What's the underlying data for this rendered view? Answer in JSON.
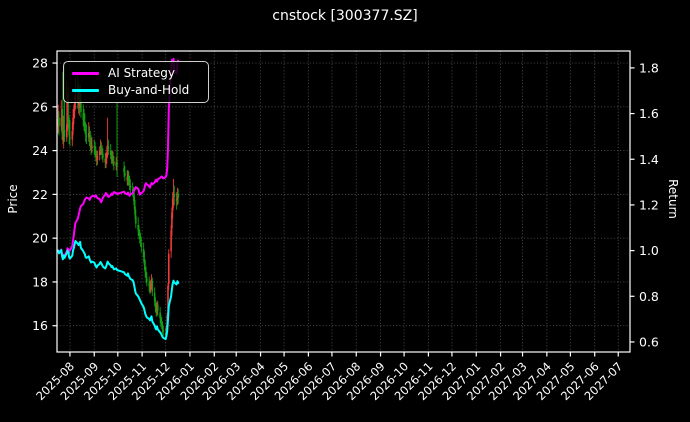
{
  "title": "cnstock [300377.SZ]",
  "chart_data": {
    "type": "candlestick+line",
    "title": "cnstock [300377.SZ]",
    "background": "#000000",
    "text_color": "#ffffff",
    "grid": {
      "on": true,
      "color": "#545454",
      "style": "dotted"
    },
    "candle_colors": {
      "up": "#f23a3a",
      "down": "#12a112",
      "convention": "red-up green-down"
    },
    "axes": {
      "left": {
        "label": "Price",
        "ticks": [
          16,
          18,
          20,
          22,
          24,
          26,
          28
        ],
        "range": [
          14.8,
          28.55
        ]
      },
      "right": {
        "label": "Return",
        "ticks": [
          0.6,
          0.8,
          1.0,
          1.2,
          1.4,
          1.6,
          1.8
        ],
        "range": [
          0.556,
          1.874
        ]
      },
      "x": {
        "range_days": [
          -1.5,
          729
        ],
        "ticks": [
          {
            "label": "2025-08",
            "t": 15
          },
          {
            "label": "2025-09",
            "t": 46
          },
          {
            "label": "2025-10",
            "t": 76
          },
          {
            "label": "2025-11",
            "t": 107
          },
          {
            "label": "2025-12",
            "t": 137
          },
          {
            "label": "2026-01",
            "t": 168
          },
          {
            "label": "2026-02",
            "t": 199
          },
          {
            "label": "2026-03",
            "t": 227
          },
          {
            "label": "2026-04",
            "t": 258
          },
          {
            "label": "2026-05",
            "t": 288
          },
          {
            "label": "2026-06",
            "t": 319
          },
          {
            "label": "2026-07",
            "t": 349
          },
          {
            "label": "2026-08",
            "t": 380
          },
          {
            "label": "2026-09",
            "t": 411
          },
          {
            "label": "2026-10",
            "t": 441
          },
          {
            "label": "2026-11",
            "t": 472
          },
          {
            "label": "2026-12",
            "t": 502
          },
          {
            "label": "2027-01",
            "t": 533
          },
          {
            "label": "2027-02",
            "t": 564
          },
          {
            "label": "2027-03",
            "t": 592
          },
          {
            "label": "2027-04",
            "t": 623
          },
          {
            "label": "2027-05",
            "t": 653
          },
          {
            "label": "2027-06",
            "t": 684
          },
          {
            "label": "2027-07",
            "t": 714
          }
        ]
      }
    },
    "legend": {
      "position": "upper-left",
      "items": [
        {
          "label": "AI Strategy",
          "color": "#ff00ff"
        },
        {
          "label": "Buy-and-Hold",
          "color": "#00ffff"
        }
      ]
    },
    "days_t": [
      0,
      1,
      4,
      5,
      6,
      7,
      8,
      11,
      12,
      13,
      14,
      15,
      18,
      19,
      20,
      21,
      22,
      25,
      26,
      27,
      28,
      29,
      32,
      33,
      34,
      35,
      36,
      39,
      40,
      41,
      42,
      43,
      46,
      47,
      48,
      49,
      50,
      53,
      54,
      55,
      56,
      57,
      60,
      61,
      62,
      63,
      64,
      67,
      68,
      69,
      70,
      71,
      74,
      75,
      84,
      85,
      88,
      89,
      90,
      91,
      92,
      95,
      96,
      97,
      98,
      99,
      102,
      103,
      104,
      105,
      106,
      109,
      110,
      111,
      112,
      113,
      116,
      117,
      118,
      119,
      120,
      123,
      124,
      125,
      126,
      127,
      130,
      131,
      132,
      133,
      134,
      137,
      138,
      139,
      140,
      141,
      144,
      145,
      146,
      147,
      148,
      151,
      152,
      153
    ],
    "ohlc": [
      [
        25.1,
        26.1,
        24.8,
        25.45
      ],
      [
        25.5,
        25.8,
        24.7,
        25.14
      ],
      [
        25.1,
        26.3,
        24.9,
        25.5
      ],
      [
        25.55,
        25.9,
        24.5,
        24.81
      ],
      [
        24.85,
        27.6,
        24.3,
        24.48
      ],
      [
        24.4,
        25.6,
        24.1,
        24.89
      ],
      [
        24.95,
        28.05,
        24.4,
        24.64
      ],
      [
        24.6,
        27.2,
        24.4,
        25.2
      ],
      [
        25.15,
        26.6,
        24.9,
        25.45
      ],
      [
        25.5,
        26.9,
        25.0,
        25.25
      ],
      [
        25.2,
        25.6,
        24.3,
        24.69
      ],
      [
        24.6,
        25.4,
        24.2,
        24.56
      ],
      [
        24.5,
        25.3,
        24.2,
        24.89
      ],
      [
        24.95,
        25.9,
        24.7,
        25.5
      ],
      [
        25.45,
        26.1,
        25.2,
        25.76
      ],
      [
        25.8,
        26.5,
        25.5,
        26.16
      ],
      [
        26.2,
        27.3,
        25.9,
        26.52
      ],
      [
        26.6,
        27.55,
        25.9,
        26.21
      ],
      [
        26.3,
        27.1,
        25.7,
        26.06
      ],
      [
        26.0,
        26.7,
        25.6,
        26.26
      ],
      [
        26.3,
        27.0,
        25.95,
        26.42
      ],
      [
        26.35,
        26.6,
        25.5,
        25.76
      ],
      [
        25.7,
        26.1,
        25.1,
        25.4
      ],
      [
        25.45,
        25.9,
        24.9,
        25.2
      ],
      [
        25.25,
        25.7,
        24.8,
        25.07
      ],
      [
        25.0,
        25.3,
        24.4,
        24.74
      ],
      [
        24.7,
        25.2,
        24.3,
        24.64
      ],
      [
        24.6,
        25.3,
        24.4,
        24.81
      ],
      [
        24.85,
        25.1,
        24.2,
        24.48
      ],
      [
        24.45,
        24.9,
        24.0,
        24.3
      ],
      [
        24.25,
        24.7,
        23.8,
        24.13
      ],
      [
        24.1,
        24.6,
        23.9,
        24.23
      ],
      [
        24.2,
        24.5,
        23.8,
        24.13
      ],
      [
        24.1,
        24.4,
        23.7,
        23.92
      ],
      [
        23.9,
        24.2,
        23.5,
        23.72
      ],
      [
        23.7,
        24.0,
        23.3,
        23.57
      ],
      [
        23.55,
        24.0,
        23.35,
        23.77
      ],
      [
        23.8,
        24.2,
        23.55,
        23.97
      ],
      [
        24.0,
        24.5,
        23.8,
        24.18
      ],
      [
        24.2,
        24.4,
        23.8,
        24.05
      ],
      [
        24.0,
        24.25,
        23.6,
        23.87
      ],
      [
        23.85,
        24.1,
        23.45,
        23.67
      ],
      [
        23.65,
        23.9,
        23.2,
        23.46
      ],
      [
        23.4,
        23.9,
        23.2,
        23.62
      ],
      [
        23.65,
        24.2,
        23.4,
        23.92
      ],
      [
        23.95,
        25.5,
        23.7,
        24.23
      ],
      [
        24.2,
        24.5,
        23.8,
        24.05
      ],
      [
        24.0,
        24.3,
        23.6,
        23.8
      ],
      [
        23.75,
        24.0,
        23.4,
        23.62
      ],
      [
        23.6,
        24.0,
        23.4,
        23.72
      ],
      [
        23.7,
        23.95,
        23.3,
        23.54
      ],
      [
        23.5,
        23.75,
        23.1,
        23.36
      ],
      [
        23.3,
        23.7,
        23.1,
        23.46
      ],
      [
        23.5,
        26.2,
        22.8,
        23.29
      ],
      [
        23.2,
        23.5,
        22.8,
        23.03
      ],
      [
        23.0,
        23.3,
        22.6,
        22.85
      ],
      [
        22.8,
        23.1,
        22.4,
        22.65
      ],
      [
        22.6,
        23.1,
        22.4,
        22.91
      ],
      [
        22.85,
        23.05,
        22.4,
        22.6
      ],
      [
        22.55,
        22.85,
        22.2,
        22.45
      ],
      [
        22.4,
        22.7,
        22.05,
        22.29
      ],
      [
        22.25,
        22.55,
        21.9,
        22.14
      ],
      [
        22.1,
        22.35,
        21.7,
        21.94
      ],
      [
        21.9,
        22.1,
        21.3,
        21.51
      ],
      [
        21.45,
        21.75,
        20.85,
        21.07
      ],
      [
        21.0,
        21.3,
        20.45,
        20.67
      ],
      [
        20.6,
        20.95,
        20.1,
        20.36
      ],
      [
        20.3,
        20.6,
        19.95,
        20.16
      ],
      [
        20.1,
        20.4,
        19.75,
        19.98
      ],
      [
        19.95,
        20.25,
        19.6,
        19.8
      ],
      [
        19.75,
        20.05,
        19.35,
        19.6
      ],
      [
        19.5,
        19.8,
        18.9,
        19.14
      ],
      [
        19.05,
        19.4,
        18.55,
        18.78
      ],
      [
        18.7,
        19.0,
        18.2,
        18.45
      ],
      [
        18.4,
        18.7,
        17.95,
        18.2
      ],
      [
        18.15,
        18.45,
        17.8,
        18.02
      ],
      [
        17.95,
        18.25,
        17.55,
        17.82
      ],
      [
        17.75,
        18.05,
        17.45,
        17.69
      ],
      [
        17.65,
        18.1,
        17.5,
        17.94
      ],
      [
        17.9,
        18.35,
        17.7,
        18.12
      ],
      [
        18.05,
        18.2,
        17.35,
        17.56
      ],
      [
        17.5,
        17.75,
        16.9,
        17.1
      ],
      [
        17.05,
        17.3,
        16.6,
        16.85
      ],
      [
        16.8,
        17.05,
        16.4,
        16.67
      ],
      [
        16.7,
        17.15,
        16.5,
        17.0
      ],
      [
        16.95,
        17.1,
        16.45,
        16.67
      ],
      [
        16.6,
        16.85,
        16.1,
        16.34
      ],
      [
        16.28,
        16.5,
        15.95,
        16.24
      ],
      [
        16.2,
        16.4,
        15.85,
        16.03
      ],
      [
        16.0,
        16.2,
        15.65,
        15.83
      ],
      [
        15.8,
        16.0,
        15.55,
        15.73
      ],
      [
        15.68,
        15.9,
        15.42,
        15.58
      ],
      [
        15.55,
        16.05,
        15.45,
        15.91
      ],
      [
        15.95,
        16.6,
        15.8,
        16.49
      ],
      [
        16.55,
        17.95,
        16.4,
        17.82
      ],
      [
        17.9,
        19.5,
        17.65,
        19.29
      ],
      [
        19.4,
        20.6,
        19.1,
        20.36
      ],
      [
        20.45,
        21.4,
        20.1,
        21.18
      ],
      [
        21.25,
        22.1,
        20.9,
        21.79
      ],
      [
        21.85,
        22.7,
        21.4,
        22.09
      ],
      [
        22.0,
        22.4,
        21.5,
        21.89
      ],
      [
        21.8,
        22.1,
        21.3,
        21.68
      ],
      [
        21.75,
        22.3,
        21.5,
        22.04
      ],
      [
        22.0,
        22.25,
        21.55,
        21.84
      ]
    ],
    "series": [
      {
        "name": "AI Strategy",
        "axis": "right",
        "color": "#ff00ff",
        "values": [
          1.0,
          0.992,
          1.004,
          0.98,
          0.968,
          0.982,
          0.975,
          0.998,
          1.01,
          1.005,
          0.995,
          1.0,
          1.02,
          1.045,
          1.07,
          1.095,
          1.12,
          1.14,
          1.155,
          1.17,
          1.185,
          1.195,
          1.205,
          1.215,
          1.222,
          1.228,
          1.232,
          1.228,
          1.222,
          1.23,
          1.235,
          1.238,
          1.24,
          1.235,
          1.242,
          1.236,
          1.23,
          1.225,
          1.218,
          1.212,
          1.222,
          1.232,
          1.245,
          1.252,
          1.248,
          1.24,
          1.235,
          1.242,
          1.25,
          1.244,
          1.25,
          1.256,
          1.252,
          1.248,
          1.258,
          1.252,
          1.246,
          1.254,
          1.248,
          1.24,
          1.246,
          1.252,
          1.258,
          1.265,
          1.272,
          1.278,
          1.27,
          1.258,
          1.245,
          1.252,
          1.25,
          1.262,
          1.275,
          1.288,
          1.295,
          1.29,
          1.282,
          1.276,
          1.288,
          1.296,
          1.29,
          1.298,
          1.306,
          1.31,
          1.302,
          1.312,
          1.318,
          1.322,
          1.325,
          1.32,
          1.316,
          1.322,
          1.33,
          1.358,
          1.45,
          1.62,
          1.78,
          1.835,
          1.82,
          1.84,
          1.788,
          1.776,
          1.822,
          1.832
        ]
      },
      {
        "name": "Buy-and-Hold",
        "axis": "right",
        "color": "#00ffff",
        "values": [
          1.0,
          0.988,
          1.002,
          0.975,
          0.962,
          0.978,
          0.968,
          0.99,
          1.0,
          0.992,
          0.97,
          0.965,
          0.978,
          1.002,
          1.012,
          1.028,
          1.042,
          1.03,
          1.024,
          1.032,
          1.038,
          1.012,
          0.998,
          0.99,
          0.985,
          0.972,
          0.968,
          0.975,
          0.962,
          0.955,
          0.948,
          0.952,
          0.948,
          0.94,
          0.932,
          0.926,
          0.934,
          0.942,
          0.95,
          0.945,
          0.938,
          0.93,
          0.922,
          0.928,
          0.94,
          0.952,
          0.945,
          0.935,
          0.928,
          0.932,
          0.925,
          0.918,
          0.922,
          0.915,
          0.905,
          0.898,
          0.89,
          0.9,
          0.888,
          0.882,
          0.876,
          0.87,
          0.862,
          0.845,
          0.828,
          0.812,
          0.8,
          0.792,
          0.785,
          0.778,
          0.77,
          0.752,
          0.738,
          0.725,
          0.715,
          0.708,
          0.7,
          0.695,
          0.705,
          0.712,
          0.69,
          0.672,
          0.662,
          0.655,
          0.668,
          0.655,
          0.642,
          0.638,
          0.63,
          0.622,
          0.618,
          0.612,
          0.625,
          0.648,
          0.7,
          0.758,
          0.8,
          0.832,
          0.856,
          0.868,
          0.86,
          0.852,
          0.866,
          0.858
        ]
      }
    ]
  }
}
